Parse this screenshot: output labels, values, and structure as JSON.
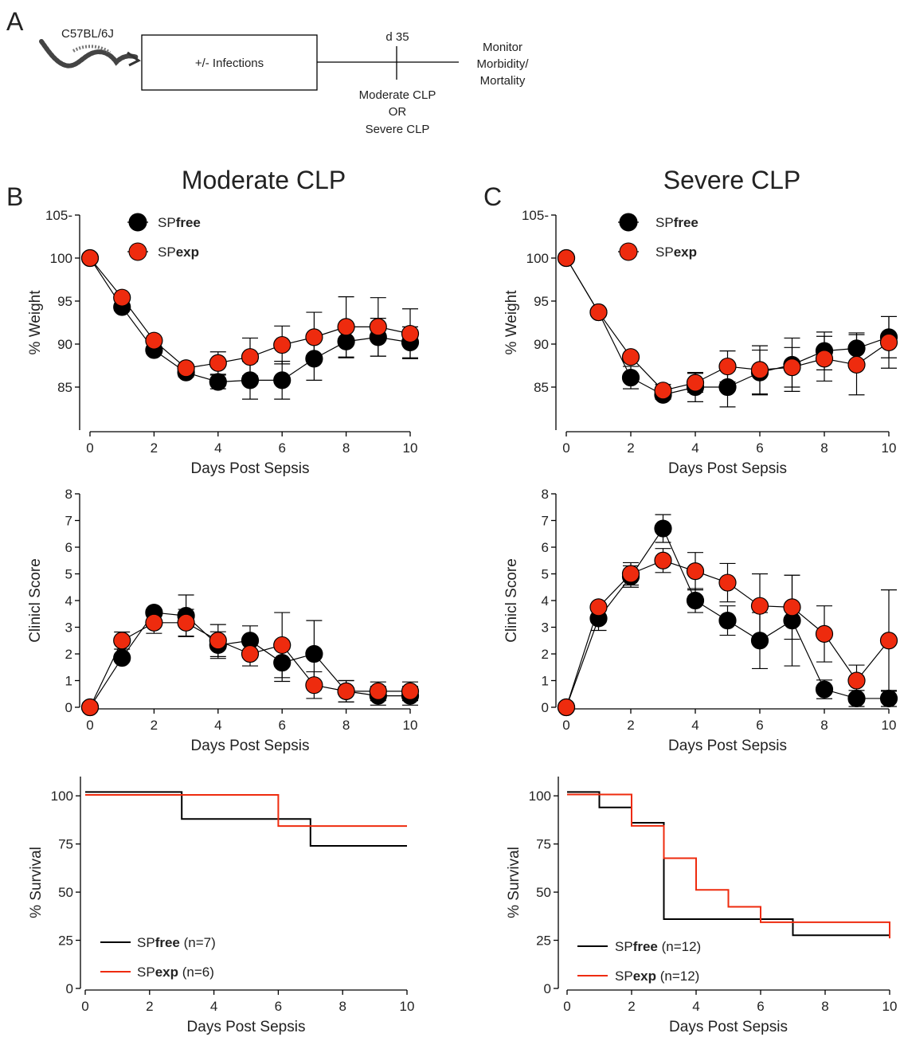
{
  "panel_letters": [
    "A",
    "B",
    "C"
  ],
  "schematic": {
    "strain": "C57BL/6J",
    "box_label": "+/- Infections",
    "timepoint": "d 35",
    "procedure": [
      "Moderate CLP",
      "OR",
      "Severe CLP"
    ],
    "monitor": [
      "Monitor",
      "Morbidity/",
      "Mortality"
    ]
  },
  "column_titles": [
    "Moderate CLP",
    "Severe CLP"
  ],
  "legend_top": [
    {
      "prefix": "SP",
      "bold": "free",
      "color": "#000000"
    },
    {
      "prefix": "SP",
      "bold": "exp",
      "color": "#ee2b0e"
    }
  ],
  "legend_survival": {
    "moderate": [
      {
        "prefix": "SP",
        "bold": "free",
        "suffix": " (n=7)",
        "color": "#000000"
      },
      {
        "prefix": "SP",
        "bold": "exp",
        "suffix": " (n=6)",
        "color": "#ee2b0e"
      }
    ],
    "severe": [
      {
        "prefix": "SP",
        "bold": "free",
        "suffix": " (n=12)",
        "color": "#000000"
      },
      {
        "prefix": "SP",
        "bold": "exp",
        "suffix": " (n=12)",
        "color": "#ee2b0e"
      }
    ]
  },
  "colors": {
    "free": "#000000",
    "exp": "#ee2b0e"
  },
  "chart_data": [
    {
      "id": "weight-moderate",
      "type": "line",
      "xlabel": "Days Post Sepsis",
      "ylabel": "% Weight",
      "xlim": [
        0,
        10
      ],
      "ylim": [
        80,
        105
      ],
      "xticks": [
        0,
        2,
        4,
        6,
        8,
        10
      ],
      "yticks": [
        85,
        90,
        95,
        100,
        105
      ],
      "ytick_labels": [
        "85",
        "90",
        "95",
        "100",
        "105-"
      ],
      "series": [
        {
          "name": "SPfree",
          "color": "#000000",
          "x": [
            0,
            1,
            2,
            3,
            4,
            5,
            6,
            7,
            8,
            9,
            10
          ],
          "y": [
            100,
            94.3,
            89.3,
            86.7,
            85.6,
            85.8,
            85.8,
            88.3,
            90.3,
            90.8,
            90.2
          ],
          "err": [
            0,
            0,
            0,
            0.5,
            0.8,
            2.2,
            2.2,
            2.5,
            1.9,
            2.2,
            1.8
          ]
        },
        {
          "name": "SPexp",
          "color": "#ee2b0e",
          "x": [
            0,
            1,
            2,
            3,
            4,
            5,
            6,
            7,
            8,
            9,
            10
          ],
          "y": [
            100,
            95.4,
            90.4,
            87.2,
            87.8,
            88.5,
            89.9,
            90.8,
            92.0,
            92.0,
            91.2
          ],
          "err": [
            0,
            0,
            0,
            0.4,
            1.3,
            2.2,
            2.2,
            2.9,
            3.5,
            3.4,
            2.9
          ]
        }
      ]
    },
    {
      "id": "clinic-moderate",
      "type": "line",
      "xlabel": "Days Post Sepsis",
      "ylabel": "Clinicl Score",
      "xlim": [
        0,
        10
      ],
      "ylim": [
        0,
        8
      ],
      "xticks": [
        0,
        2,
        4,
        6,
        8,
        10
      ],
      "yticks": [
        0,
        1,
        2,
        3,
        4,
        5,
        6,
        7,
        8
      ],
      "series": [
        {
          "name": "SPfree",
          "color": "#000000",
          "x": [
            0,
            1,
            2,
            3,
            4,
            5,
            6,
            7,
            8,
            9,
            10
          ],
          "y": [
            0,
            1.85,
            3.55,
            3.43,
            2.33,
            2.5,
            1.67,
            2.0,
            0.6,
            0.43,
            0.43
          ],
          "err": [
            0,
            0,
            0,
            0.78,
            0.5,
            0.55,
            0.7,
            1.25,
            0.4,
            0.35,
            0.35
          ]
        },
        {
          "name": "SPexp",
          "color": "#ee2b0e",
          "x": [
            0,
            1,
            2,
            3,
            4,
            5,
            6,
            7,
            8,
            9,
            10
          ],
          "y": [
            0,
            2.5,
            3.17,
            3.17,
            2.5,
            2.0,
            2.33,
            0.83,
            0.6,
            0.6,
            0.6
          ],
          "err": [
            0,
            0.32,
            0.4,
            0.5,
            0.6,
            0.45,
            1.22,
            0.5,
            0.4,
            0.35,
            0.35
          ]
        }
      ]
    },
    {
      "id": "survival-moderate",
      "type": "line",
      "xlabel": "Days Post Sepsis",
      "ylabel": "% Survival",
      "xlim": [
        0,
        10
      ],
      "ylim": [
        0,
        110
      ],
      "xticks": [
        0,
        2,
        4,
        6,
        8,
        10
      ],
      "yticks": [
        0,
        25,
        50,
        75,
        100
      ],
      "series": [
        {
          "name": "SPfree (n=7)",
          "color": "#000000",
          "x": [
            0,
            3,
            7,
            10
          ],
          "y": [
            102,
            88,
            74,
            74
          ]
        },
        {
          "name": "SPexp (n=6)",
          "color": "#ee2b0e",
          "x": [
            0,
            6,
            10
          ],
          "y": [
            100.5,
            84.3,
            84.3
          ]
        }
      ]
    },
    {
      "id": "weight-severe",
      "type": "line",
      "xlabel": "Days Post Sepsis",
      "ylabel": "% Weight",
      "xlim": [
        0,
        10
      ],
      "ylim": [
        80,
        105
      ],
      "xticks": [
        0,
        2,
        4,
        6,
        8,
        10
      ],
      "yticks": [
        85,
        90,
        95,
        100,
        105
      ],
      "ytick_labels": [
        "85",
        "90",
        "95",
        "100",
        "105-"
      ],
      "series": [
        {
          "name": "SPfree",
          "color": "#000000",
          "x": [
            0,
            1,
            2,
            3,
            4,
            5,
            6,
            7,
            8,
            9,
            10
          ],
          "y": [
            100,
            93.7,
            86.1,
            84.1,
            85.0,
            85.0,
            86.7,
            87.6,
            89.2,
            89.5,
            90.8
          ],
          "err": [
            0,
            0,
            1.3,
            0.5,
            1.7,
            2.3,
            2.6,
            3.1,
            2.2,
            1.8,
            2.4
          ]
        },
        {
          "name": "SPexp",
          "color": "#ee2b0e",
          "x": [
            0,
            1,
            2,
            3,
            4,
            5,
            6,
            7,
            8,
            9,
            10
          ],
          "y": [
            100,
            93.7,
            88.5,
            84.6,
            85.5,
            87.4,
            87.0,
            87.3,
            88.3,
            87.6,
            90.2
          ],
          "err": [
            0,
            0,
            0,
            0.7,
            1.1,
            1.8,
            2.8,
            2.3,
            2.6,
            3.5,
            3.0
          ]
        }
      ]
    },
    {
      "id": "clinic-severe",
      "type": "line",
      "xlabel": "Days Post Sepsis",
      "ylabel": "Clinicl Score",
      "xlim": [
        0,
        10
      ],
      "ylim": [
        0,
        8
      ],
      "xticks": [
        0,
        2,
        4,
        6,
        8,
        10
      ],
      "yticks": [
        0,
        1,
        2,
        3,
        4,
        5,
        6,
        7,
        8
      ],
      "series": [
        {
          "name": "SPfree",
          "color": "#000000",
          "x": [
            0,
            1,
            2,
            3,
            4,
            5,
            6,
            7,
            8,
            9,
            10
          ],
          "y": [
            0,
            3.33,
            4.9,
            6.7,
            4.0,
            3.25,
            2.5,
            3.25,
            0.67,
            0.33,
            0.33
          ],
          "err": [
            0,
            0.45,
            0.4,
            0.52,
            0.45,
            0.55,
            1.05,
            1.7,
            0.35,
            0.3,
            0.3
          ]
        },
        {
          "name": "SPexp",
          "color": "#ee2b0e",
          "x": [
            0,
            1,
            2,
            3,
            4,
            5,
            6,
            7,
            8,
            9,
            10
          ],
          "y": [
            0,
            3.75,
            5.0,
            5.5,
            5.1,
            4.67,
            3.8,
            3.75,
            2.75,
            1.0,
            2.5
          ],
          "err": [
            0,
            0,
            0.42,
            0.45,
            0.7,
            0.72,
            1.2,
            1.2,
            1.05,
            0.58,
            1.9
          ]
        }
      ]
    },
    {
      "id": "survival-severe",
      "type": "line",
      "xlabel": "Days Post Sepsis",
      "ylabel": "% Survival",
      "xlim": [
        0,
        10
      ],
      "ylim": [
        0,
        110
      ],
      "xticks": [
        0,
        2,
        4,
        6,
        8,
        10
      ],
      "yticks": [
        0,
        25,
        50,
        75,
        100
      ],
      "series": [
        {
          "name": "SPfree (n=12)",
          "color": "#000000",
          "x": [
            0,
            1,
            2,
            3,
            7,
            10
          ],
          "y": [
            102,
            94,
            86,
            36,
            27.6,
            27.6
          ]
        },
        {
          "name": "SPexp (n=12)",
          "color": "#ee2b0e",
          "x": [
            0,
            2,
            3,
            4,
            5,
            6,
            10
          ],
          "y": [
            100.7,
            84.4,
            67.6,
            51.2,
            42.4,
            34.4,
            26
          ]
        }
      ]
    }
  ]
}
